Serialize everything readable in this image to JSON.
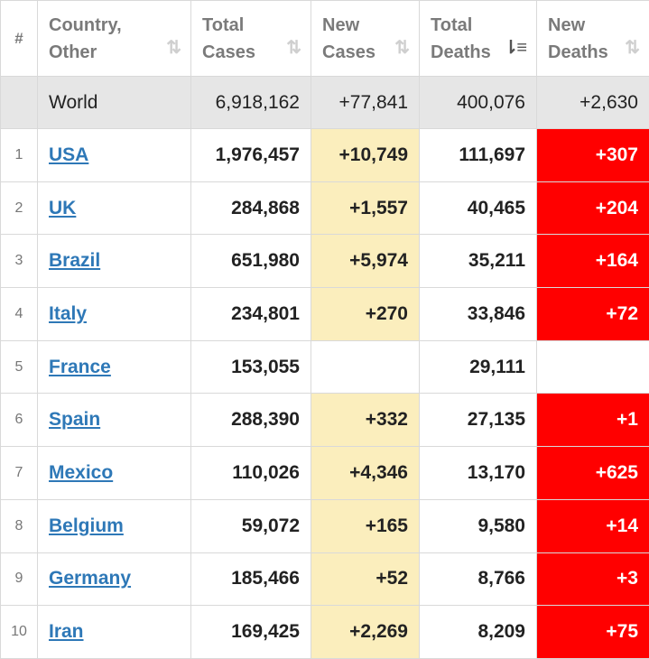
{
  "headers": {
    "index": "#",
    "country": [
      "Country,",
      "Other"
    ],
    "total_cases": [
      "Total",
      "Cases"
    ],
    "new_cases": [
      "New",
      "Cases"
    ],
    "total_deaths": [
      "Total",
      "Deaths"
    ],
    "new_deaths": [
      "New",
      "Deaths"
    ],
    "sort_icon": "⇅",
    "active_sort_icon": "⇂≡",
    "active_sort_column": "total_deaths"
  },
  "world": {
    "name": "World",
    "total_cases": "6,918,162",
    "new_cases": "+77,841",
    "total_deaths": "400,076",
    "new_deaths": "+2,630"
  },
  "colors": {
    "new_cases_highlight": "#fbeebd",
    "new_deaths_highlight": "#ff0000",
    "world_row_bg": "#e6e6e6",
    "link": "#2e78b7"
  },
  "rows": [
    {
      "idx": "1",
      "country": "USA",
      "total_cases": "1,976,457",
      "new_cases": "+10,749",
      "total_deaths": "111,697",
      "new_deaths": "+307"
    },
    {
      "idx": "2",
      "country": "UK",
      "total_cases": "284,868",
      "new_cases": "+1,557",
      "total_deaths": "40,465",
      "new_deaths": "+204"
    },
    {
      "idx": "3",
      "country": "Brazil",
      "total_cases": "651,980",
      "new_cases": "+5,974",
      "total_deaths": "35,211",
      "new_deaths": "+164"
    },
    {
      "idx": "4",
      "country": "Italy",
      "total_cases": "234,801",
      "new_cases": "+270",
      "total_deaths": "33,846",
      "new_deaths": "+72"
    },
    {
      "idx": "5",
      "country": "France",
      "total_cases": "153,055",
      "new_cases": "",
      "total_deaths": "29,111",
      "new_deaths": ""
    },
    {
      "idx": "6",
      "country": "Spain",
      "total_cases": "288,390",
      "new_cases": "+332",
      "total_deaths": "27,135",
      "new_deaths": "+1"
    },
    {
      "idx": "7",
      "country": "Mexico",
      "total_cases": "110,026",
      "new_cases": "+4,346",
      "total_deaths": "13,170",
      "new_deaths": "+625"
    },
    {
      "idx": "8",
      "country": "Belgium",
      "total_cases": "59,072",
      "new_cases": "+165",
      "total_deaths": "9,580",
      "new_deaths": "+14"
    },
    {
      "idx": "9",
      "country": "Germany",
      "total_cases": "185,466",
      "new_cases": "+52",
      "total_deaths": "8,766",
      "new_deaths": "+3"
    },
    {
      "idx": "10",
      "country": "Iran",
      "total_cases": "169,425",
      "new_cases": "+2,269",
      "total_deaths": "8,209",
      "new_deaths": "+75"
    }
  ]
}
